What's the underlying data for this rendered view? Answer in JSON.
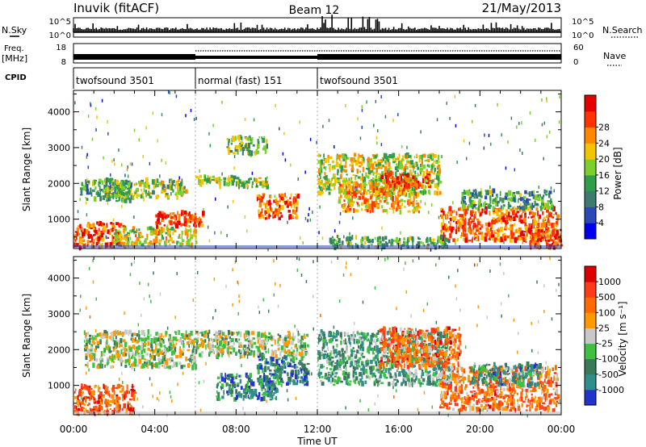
{
  "header": {
    "station": "Inuvik (fitACF)",
    "beam": "Beam 12",
    "date": "21/May/2013"
  },
  "top_panels": {
    "nsky_label": "N.Sky",
    "nsearch_label": "N.Search",
    "nsky_ticks": [
      "10^5",
      "10^0"
    ],
    "nsearch_ticks": [
      "10^5",
      "10^0"
    ],
    "freq_label": "Freq.",
    "freq_unit": "[MHz]",
    "freq_ticks": [
      "18",
      "8"
    ],
    "nave_label": "Nave",
    "nave_ticks": [
      "60",
      "0"
    ],
    "cpid_label": "CPID",
    "cpid_segments": [
      {
        "label": "twofsound 3501",
        "start": 0,
        "end": 6
      },
      {
        "label": "normal (fast) 151",
        "start": 6,
        "end": 12
      },
      {
        "label": "twofsound 3501",
        "start": 12,
        "end": 24
      }
    ]
  },
  "chart_data": [
    {
      "type": "heatmap",
      "name": "power",
      "ylabel": "Slant Range [km]",
      "yticks": [
        "1000",
        "2000",
        "3000",
        "4000"
      ],
      "ylim": [
        180,
        4600
      ],
      "xlim": [
        0,
        24
      ],
      "colorbar": {
        "label": "Power [dB]",
        "ticks": [
          "4",
          "8",
          "12",
          "16",
          "20",
          "24",
          "28"
        ],
        "range": [
          0,
          30
        ],
        "colors": [
          "#0000ee",
          "#2a48b8",
          "#3e7a6e",
          "#2f9d4a",
          "#7dcf2e",
          "#f5c400",
          "#ff8800",
          "#ff3300",
          "#e60000"
        ]
      },
      "echo_bands": [
        {
          "t0": 0.0,
          "t1": 2.5,
          "r0": 200,
          "r1": 900,
          "level": 0.85
        },
        {
          "t0": 0.3,
          "t1": 2.8,
          "r0": 1500,
          "r1": 2100,
          "level": 0.35
        },
        {
          "t0": 2.0,
          "t1": 6.0,
          "r0": 250,
          "r1": 750,
          "level": 0.6
        },
        {
          "t0": 1.5,
          "t1": 5.5,
          "r0": 1600,
          "r1": 2100,
          "level": 0.5
        },
        {
          "t0": 4.0,
          "t1": 6.5,
          "r0": 800,
          "r1": 1200,
          "level": 0.9
        },
        {
          "t0": 6.0,
          "t1": 9.5,
          "r0": 1900,
          "r1": 2200,
          "level": 0.5
        },
        {
          "t0": 7.5,
          "t1": 9.5,
          "r0": 2800,
          "r1": 3300,
          "level": 0.45
        },
        {
          "t0": 9.0,
          "t1": 11.0,
          "r0": 1000,
          "r1": 1700,
          "level": 0.8
        },
        {
          "t0": 12.0,
          "t1": 18.0,
          "r0": 1700,
          "r1": 2800,
          "level": 0.55
        },
        {
          "t0": 13.0,
          "t1": 17.0,
          "r0": 1200,
          "r1": 2000,
          "level": 0.7
        },
        {
          "t0": 15.0,
          "t1": 17.5,
          "r0": 1900,
          "r1": 2300,
          "level": 0.9
        },
        {
          "t0": 18.0,
          "t1": 23.8,
          "r0": 400,
          "r1": 1300,
          "level": 0.8
        },
        {
          "t0": 19.0,
          "t1": 23.5,
          "r0": 1300,
          "r1": 1800,
          "level": 0.35
        },
        {
          "t0": 12.5,
          "t1": 18.5,
          "r0": 200,
          "r1": 500,
          "level": 0.4
        },
        {
          "t0": 22.0,
          "t1": 24.0,
          "r0": 200,
          "r1": 700,
          "level": 0.9
        }
      ]
    },
    {
      "type": "heatmap",
      "name": "velocity",
      "ylabel": "Slant Range [km]",
      "yticks": [
        "1000",
        "2000",
        "3000",
        "4000"
      ],
      "ylim": [
        180,
        4600
      ],
      "xlim": [
        0,
        24
      ],
      "xticks": [
        "00:00",
        "04:00",
        "08:00",
        "12:00",
        "16:00",
        "20:00",
        "00:00"
      ],
      "xlabel": "Time UT",
      "colorbar": {
        "label": "Velocity [m s⁻¹]",
        "ticks": [
          "1000",
          "500",
          "100",
          "25",
          "-25",
          "-100",
          "-500",
          "-1000"
        ],
        "colors": [
          "#2233cc",
          "#2f8f8a",
          "#3a7a5a",
          "#3fc040",
          "#c8c8c8",
          "#ff9900",
          "#ff6a00",
          "#ff3a1a",
          "#dd0000"
        ]
      },
      "echo_bands": [
        {
          "t0": 0.0,
          "t1": 3.0,
          "r0": 200,
          "r1": 1000,
          "level": 0.8
        },
        {
          "t0": 0.5,
          "t1": 6.0,
          "r0": 1500,
          "r1": 2500,
          "level": 0.45
        },
        {
          "t0": 6.0,
          "t1": 11.5,
          "r0": 1800,
          "r1": 2500,
          "level": 0.45
        },
        {
          "t0": 7.0,
          "t1": 10.0,
          "r0": 600,
          "r1": 1300,
          "level": 0.2
        },
        {
          "t0": 9.0,
          "t1": 11.5,
          "r0": 1000,
          "r1": 1800,
          "level": 0.2
        },
        {
          "t0": 12.0,
          "t1": 18.5,
          "r0": 1000,
          "r1": 2500,
          "level": 0.3
        },
        {
          "t0": 15.0,
          "t1": 19.0,
          "r0": 1500,
          "r1": 2600,
          "level": 0.75
        },
        {
          "t0": 18.0,
          "t1": 23.8,
          "r0": 300,
          "r1": 1500,
          "level": 0.72
        },
        {
          "t0": 19.5,
          "t1": 23.0,
          "r0": 1000,
          "r1": 1600,
          "level": 0.25
        }
      ]
    }
  ]
}
